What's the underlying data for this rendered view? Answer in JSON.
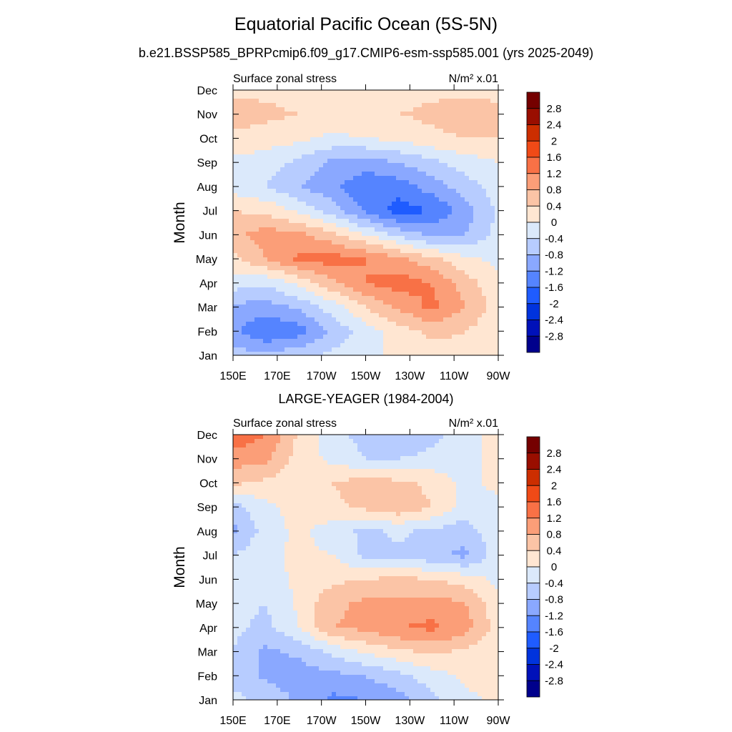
{
  "title": "Equatorial Pacific Ocean (5S-5N)",
  "subtitle": "b.e21.BSSP585_BPRPcmip6.f09_g17.CMIP6-esm-ssp585.001 (yrs 2025-2049)",
  "chart_data": [
    {
      "type": "heatmap",
      "panel_title": "",
      "left_label": "Surface zonal stress",
      "units_label": "N/m² x.01",
      "ylabel": "Month",
      "x_tick_labels": [
        "150E",
        "170E",
        "170W",
        "150W",
        "130W",
        "110W",
        "90W"
      ],
      "y_tick_labels": [
        "Jan",
        "Feb",
        "Mar",
        "Apr",
        "May",
        "Jun",
        "Jul",
        "Aug",
        "Sep",
        "Oct",
        "Nov",
        "Dec"
      ],
      "xlim": [
        150,
        270
      ],
      "ylim": [
        1,
        12
      ],
      "levels": [
        -2.8,
        -2.4,
        -2,
        -1.6,
        -1.2,
        -0.8,
        -0.4,
        0,
        0.4,
        0.8,
        1.2,
        1.6,
        2,
        2.4,
        2.8
      ],
      "colorbar_labels": [
        "2.8",
        "2.4",
        "2",
        "1.6",
        "1.2",
        "0.8",
        "0.4",
        "0",
        "-0.4",
        "-0.8",
        "-1.2",
        "-1.6",
        "-2",
        "-2.4",
        "-2.8"
      ],
      "lon_nodes": [
        150,
        165,
        180,
        195,
        210,
        225,
        240,
        255,
        270
      ],
      "rows": [
        {
          "month": "Jan",
          "values": [
            -0.6,
            -0.7,
            -0.5,
            -0.3,
            -0.1,
            0.1,
            0.2,
            0.3,
            0.0
          ]
        },
        {
          "month": "Feb",
          "values": [
            -1.1,
            -1.6,
            -1.4,
            -0.7,
            -0.2,
            0.2,
            0.5,
            0.4,
            0.1
          ]
        },
        {
          "month": "Mar",
          "values": [
            -0.9,
            -1.0,
            -0.7,
            -0.2,
            0.4,
            0.9,
            1.3,
            0.8,
            0.2
          ]
        },
        {
          "month": "Apr",
          "values": [
            -0.2,
            -0.3,
            0.1,
            0.7,
            1.2,
            1.4,
            1.2,
            0.6,
            0.1
          ]
        },
        {
          "month": "May",
          "values": [
            0.3,
            0.8,
            1.3,
            1.4,
            1.2,
            0.9,
            0.5,
            0.1,
            -0.1
          ]
        },
        {
          "month": "Jun",
          "values": [
            0.7,
            1.0,
            0.9,
            0.5,
            0.0,
            -0.5,
            -0.9,
            -0.8,
            -0.3
          ]
        },
        {
          "month": "Jul",
          "values": [
            0.4,
            0.3,
            -0.1,
            -0.6,
            -1.3,
            -1.8,
            -1.6,
            -1.0,
            -0.3
          ]
        },
        {
          "month": "Aug",
          "values": [
            -0.2,
            -0.4,
            -0.8,
            -1.1,
            -1.5,
            -1.4,
            -1.0,
            -0.6,
            -0.2
          ]
        },
        {
          "month": "Sep",
          "values": [
            -0.1,
            -0.2,
            -0.5,
            -0.9,
            -1.0,
            -0.8,
            -0.5,
            -0.2,
            0.0
          ]
        },
        {
          "month": "Oct",
          "values": [
            0.3,
            0.2,
            0.1,
            -0.1,
            0.0,
            0.1,
            0.3,
            0.4,
            0.4
          ]
        },
        {
          "month": "Nov",
          "values": [
            0.6,
            0.5,
            0.4,
            0.3,
            0.3,
            0.4,
            0.5,
            0.6,
            0.5
          ]
        },
        {
          "month": "Dec",
          "values": [
            0.3,
            0.3,
            0.2,
            0.1,
            0.1,
            0.2,
            0.3,
            0.3,
            0.3
          ]
        }
      ]
    },
    {
      "type": "heatmap",
      "panel_title": "LARGE-YEAGER (1984-2004)",
      "left_label": "Surface zonal stress",
      "units_label": "N/m² x.01",
      "ylabel": "Month",
      "x_tick_labels": [
        "150E",
        "170E",
        "170W",
        "150W",
        "130W",
        "110W",
        "90W"
      ],
      "y_tick_labels": [
        "Jan",
        "Feb",
        "Mar",
        "Apr",
        "May",
        "Jun",
        "Jul",
        "Aug",
        "Sep",
        "Oct",
        "Nov",
        "Dec"
      ],
      "xlim": [
        150,
        270
      ],
      "ylim": [
        1,
        12
      ],
      "levels": [
        -2.8,
        -2.4,
        -2,
        -1.6,
        -1.2,
        -0.8,
        -0.4,
        0,
        0.4,
        0.8,
        1.2,
        1.6,
        2,
        2.4,
        2.8
      ],
      "colorbar_labels": [
        "2.8",
        "2.4",
        "2",
        "1.6",
        "1.2",
        "0.8",
        "0.4",
        "0",
        "-0.4",
        "-0.8",
        "-1.2",
        "-1.6",
        "-2",
        "-2.4",
        "-2.8"
      ],
      "lon_nodes": [
        150,
        165,
        180,
        195,
        210,
        225,
        240,
        255,
        270
      ],
      "rows": [
        {
          "month": "Jan",
          "values": [
            -0.3,
            -0.5,
            -0.9,
            -1.3,
            -1.2,
            -1.0,
            -0.5,
            -0.1,
            0.1
          ]
        },
        {
          "month": "Feb",
          "values": [
            -0.5,
            -0.9,
            -1.0,
            -0.9,
            -0.8,
            -0.5,
            -0.2,
            0.1,
            0.1
          ]
        },
        {
          "month": "Mar",
          "values": [
            -0.4,
            -0.9,
            -0.7,
            -0.3,
            0.1,
            0.3,
            0.5,
            0.3,
            0.0
          ]
        },
        {
          "month": "Apr",
          "values": [
            -0.3,
            -0.5,
            0.0,
            0.8,
            0.9,
            1.2,
            1.3,
            1.0,
            0.2
          ]
        },
        {
          "month": "May",
          "values": [
            -0.3,
            -0.4,
            0.1,
            0.7,
            0.9,
            0.9,
            1.0,
            0.8,
            0.1
          ]
        },
        {
          "month": "Jun",
          "values": [
            -0.2,
            -0.2,
            0.1,
            0.3,
            0.4,
            0.5,
            0.4,
            0.2,
            -0.1
          ]
        },
        {
          "month": "Jul",
          "values": [
            -0.4,
            -0.1,
            0.1,
            0.0,
            -0.5,
            -0.5,
            -0.7,
            -0.9,
            -0.2
          ]
        },
        {
          "month": "Aug",
          "values": [
            -0.9,
            -0.2,
            0.1,
            -0.2,
            -0.5,
            -0.3,
            -0.5,
            -0.6,
            -0.1
          ]
        },
        {
          "month": "Sep",
          "values": [
            -0.6,
            -0.1,
            0.2,
            0.3,
            0.5,
            0.7,
            0.4,
            -0.2,
            -0.1
          ]
        },
        {
          "month": "Oct",
          "values": [
            0.5,
            0.3,
            0.1,
            0.4,
            0.6,
            0.5,
            0.3,
            -0.1,
            0.1
          ]
        },
        {
          "month": "Nov",
          "values": [
            1.0,
            0.9,
            0.2,
            -0.1,
            -0.4,
            -0.4,
            -0.3,
            -0.2,
            0.2
          ]
        },
        {
          "month": "Dec",
          "values": [
            1.5,
            1.2,
            0.3,
            -0.2,
            -0.6,
            -0.8,
            -0.5,
            -0.2,
            0.2
          ]
        }
      ]
    }
  ],
  "palette": [
    "#00008c",
    "#0011b9",
    "#0033dd",
    "#1f5cff",
    "#5584ff",
    "#8aa8ff",
    "#b7ccff",
    "#dbe9fb",
    "#ffe6d2",
    "#fbc4a6",
    "#fb9e78",
    "#f87146",
    "#f04a17",
    "#cc2e00",
    "#990e00",
    "#750000"
  ]
}
